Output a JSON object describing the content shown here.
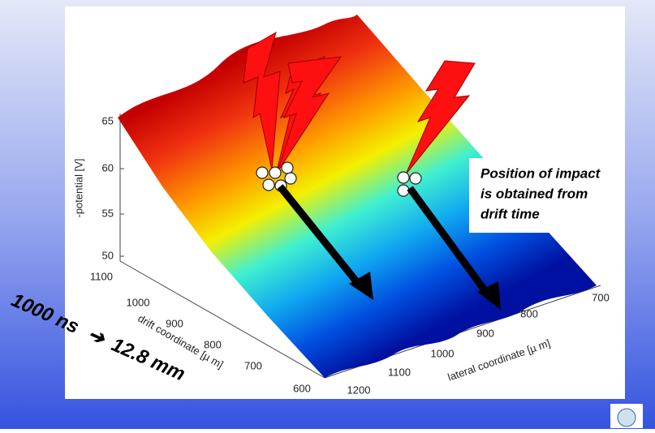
{
  "plot": {
    "z_axis": {
      "label": "-potential [V]",
      "ticks": [
        65,
        60,
        55,
        50
      ]
    },
    "drift_axis": {
      "label": "drift coordinate [µ m]",
      "ticks": [
        1100,
        1000,
        900,
        800,
        700,
        600
      ]
    },
    "lateral_axis": {
      "label": "lateral coordinate [µ m]",
      "ticks": [
        1200,
        1100,
        1000,
        900,
        800,
        700
      ]
    }
  },
  "annotation": [
    "Position of impact",
    "is obtained from",
    "drift time"
  ],
  "conversion": {
    "time": "1000 ns",
    "arrow": "➔",
    "distance": "12.8 mm"
  }
}
